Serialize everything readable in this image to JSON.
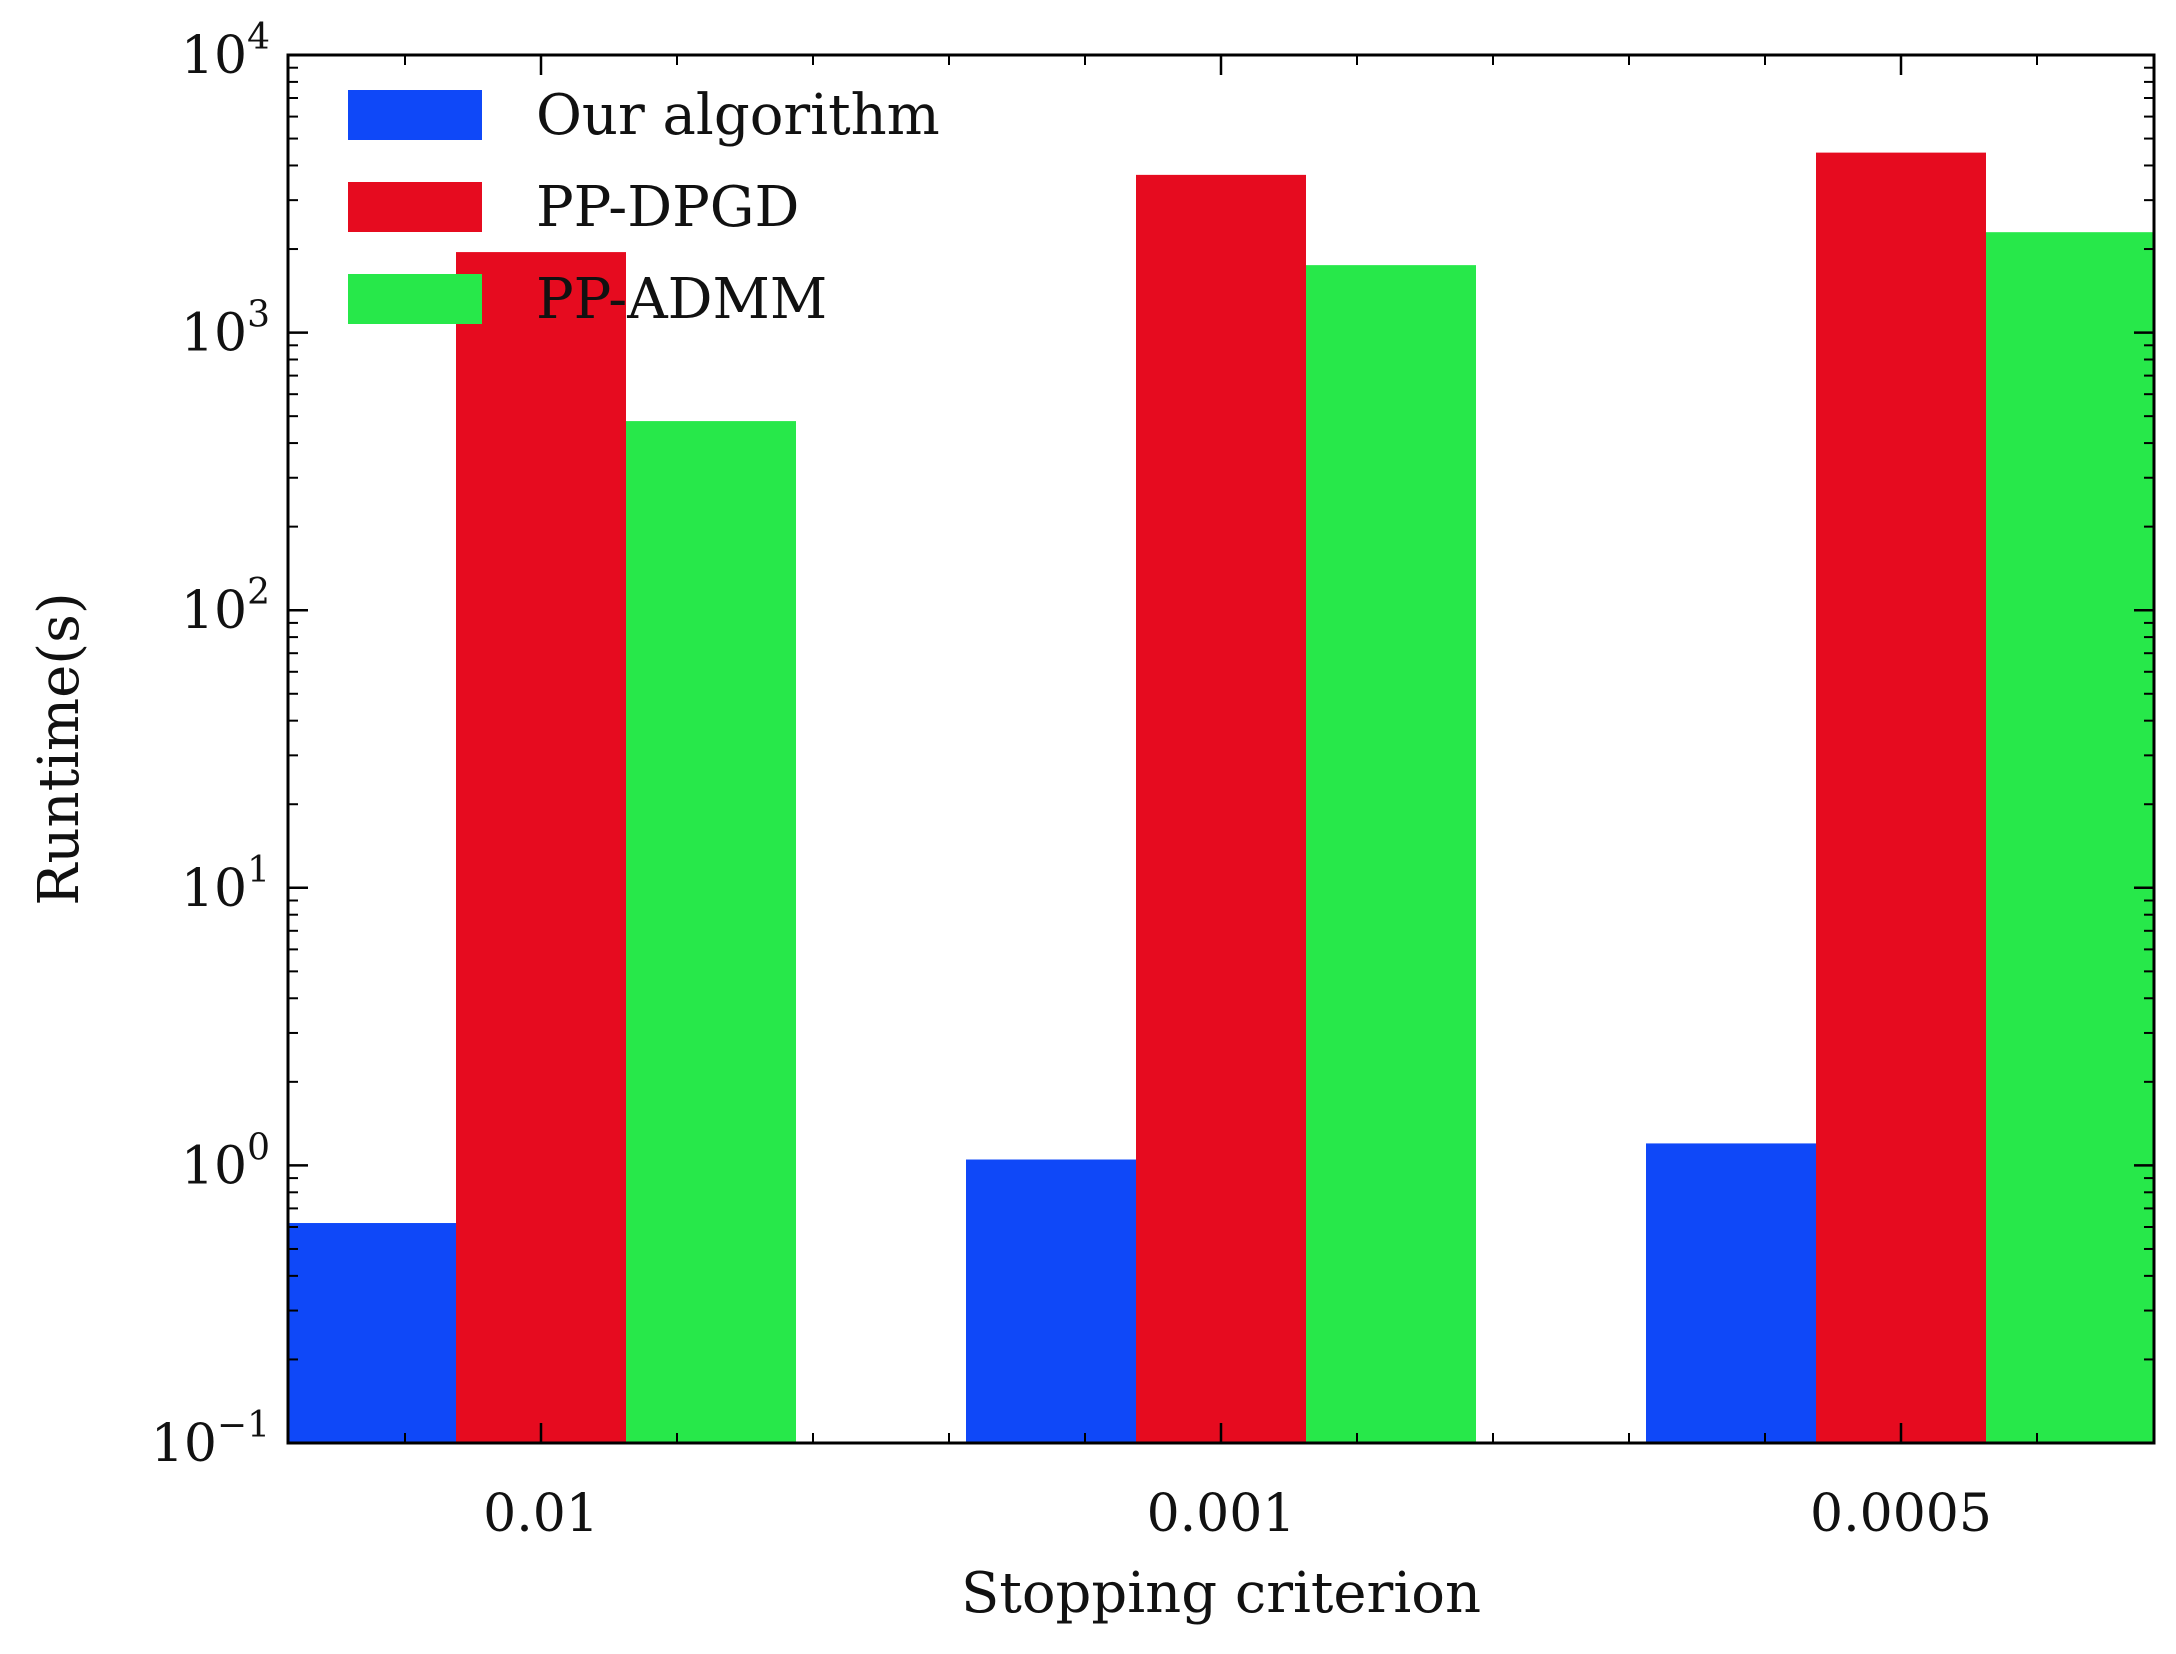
{
  "chart_data": {
    "type": "bar",
    "scale": "log",
    "title": "",
    "xlabel": "Stopping criterion",
    "ylabel": "Runtime(s)",
    "categories": [
      "0.01",
      "0.001",
      "0.0005"
    ],
    "ylim": [
      0.1,
      10000
    ],
    "yticks": [
      {
        "base": "10",
        "exp": "−1",
        "value": 0.1
      },
      {
        "base": "10",
        "exp": "0",
        "value": 1
      },
      {
        "base": "10",
        "exp": "1",
        "value": 10
      },
      {
        "base": "10",
        "exp": "2",
        "value": 100
      },
      {
        "base": "10",
        "exp": "3",
        "value": 1000
      },
      {
        "base": "10",
        "exp": "4",
        "value": 10000
      }
    ],
    "series": [
      {
        "name": "Our algorithm",
        "color": "#0f48f8",
        "values": [
          0.62,
          1.05,
          1.2
        ]
      },
      {
        "name": "PP-DPGD",
        "color": "#e60b1f",
        "values": [
          1950,
          3700,
          4450
        ]
      },
      {
        "name": "PP-ADMM",
        "color": "#27e84a",
        "values": [
          480,
          1750,
          2300
        ]
      }
    ],
    "legend_position": "top-left",
    "grid": false
  }
}
